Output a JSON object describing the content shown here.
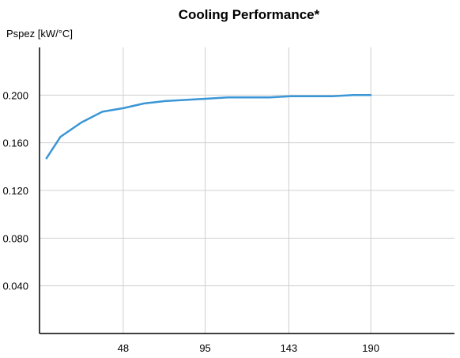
{
  "chart_data": {
    "type": "line",
    "title": "Cooling Performance*",
    "ylabel": "Pspez [kW/°C]",
    "xlabel": "",
    "x_ticks": [
      48,
      95,
      143,
      190
    ],
    "y_ticks": [
      "0.200",
      "0.160",
      "0.120",
      "0.080",
      "0.040"
    ],
    "x_tick_values": [
      48,
      95,
      143,
      190
    ],
    "y_tick_values": [
      0.2,
      0.16,
      0.12,
      0.08,
      0.04
    ],
    "xlim": [
      0,
      238
    ],
    "ylim": [
      0,
      0.24
    ],
    "grid": true,
    "series": [
      {
        "color": "#3a96d6",
        "x": [
          4,
          12,
          24,
          36,
          48,
          60,
          72,
          84,
          96,
          108,
          120,
          132,
          144,
          156,
          168,
          180,
          190
        ],
        "y": [
          0.147,
          0.165,
          0.177,
          0.186,
          0.189,
          0.193,
          0.195,
          0.196,
          0.197,
          0.198,
          0.198,
          0.198,
          0.199,
          0.199,
          0.199,
          0.2,
          0.2
        ]
      }
    ]
  }
}
